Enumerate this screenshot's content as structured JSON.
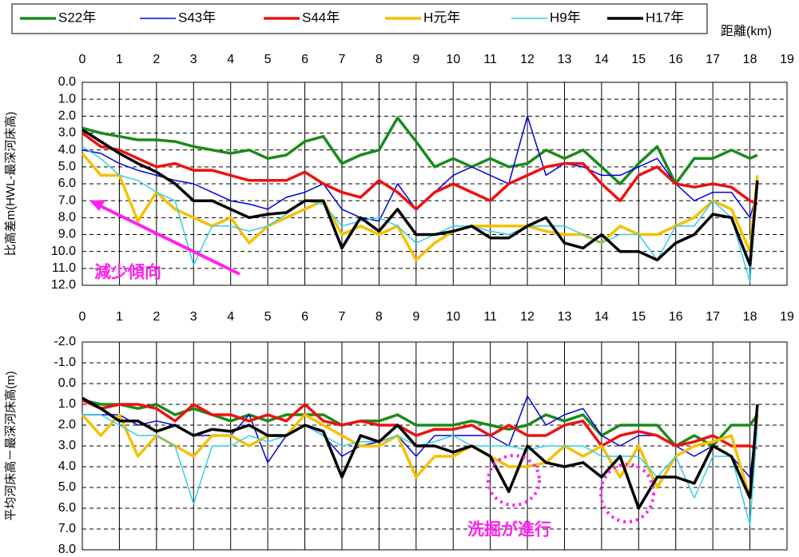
{
  "chart_data": [
    {
      "type": "line",
      "x_label": "距離(km)",
      "y_label": "比高差m(HWL-最深河床高)",
      "annotation": "減少傾向",
      "x": [
        0,
        0.5,
        1,
        1.5,
        2,
        2.5,
        3,
        3.5,
        4,
        4.5,
        5,
        5.5,
        6,
        6.5,
        7,
        7.5,
        8,
        8.5,
        9,
        9.5,
        10,
        10.5,
        11,
        11.5,
        12,
        12.5,
        13,
        13.5,
        14,
        14.5,
        15,
        15.5,
        16,
        16.5,
        17,
        17.5,
        18,
        18.2
      ],
      "xlim": [
        0,
        19
      ],
      "xticks": [
        0,
        1,
        2,
        3,
        4,
        5,
        6,
        7,
        8,
        9,
        10,
        11,
        12,
        13,
        14,
        15,
        16,
        17,
        18,
        19
      ],
      "ylim": [
        0,
        12
      ],
      "y_inverted": true,
      "grid": true,
      "yticks": [
        {
          "value": 0,
          "label": "0.0"
        },
        {
          "value": 1,
          "label": "1.0"
        },
        {
          "value": 2,
          "label": "2.0"
        },
        {
          "value": 3,
          "label": "3.0"
        },
        {
          "value": 4,
          "label": "4.0"
        },
        {
          "value": 5,
          "label": "5.0"
        },
        {
          "value": 6,
          "label": "6.0"
        },
        {
          "value": 7,
          "label": "7.0"
        },
        {
          "value": 8,
          "label": "8.0"
        },
        {
          "value": 9,
          "label": "9.0"
        },
        {
          "value": 10,
          "label": "10.0"
        },
        {
          "value": 11,
          "label": "11.0"
        },
        {
          "value": 12,
          "label": "12.0"
        }
      ],
      "series": [
        {
          "name": "S22年",
          "color": "#1a8a1a",
          "width": 3.5,
          "values": [
            2.7,
            3.0,
            3.2,
            3.4,
            3.4,
            3.5,
            3.8,
            4.0,
            4.2,
            4.0,
            4.5,
            4.3,
            3.5,
            3.2,
            4.8,
            4.3,
            4.0,
            2.1,
            3.5,
            5.0,
            4.5,
            5.0,
            4.5,
            5.0,
            4.8,
            4.0,
            4.5,
            4.0,
            5.0,
            6.0,
            4.8,
            3.8,
            6.0,
            4.5,
            4.5,
            4.0,
            4.5,
            4.3
          ]
        },
        {
          "name": "S43年",
          "color": "#0000dd",
          "width": 1.5,
          "values": [
            4.0,
            4.2,
            4.8,
            5.2,
            5.5,
            5.8,
            6.0,
            6.5,
            7.0,
            7.2,
            7.5,
            6.8,
            6.5,
            6.0,
            7.5,
            8.0,
            8.2,
            6.0,
            7.5,
            6.5,
            5.5,
            5.0,
            5.5,
            6.0,
            2.0,
            5.5,
            4.8,
            5.0,
            5.5,
            5.5,
            5.0,
            4.5,
            6.0,
            7.0,
            6.5,
            6.5,
            8.0,
            6.5
          ]
        },
        {
          "name": "S44年",
          "color": "#ee1111",
          "width": 3.5,
          "values": [
            3.0,
            3.8,
            4.0,
            4.5,
            5.0,
            4.8,
            5.2,
            5.2,
            5.5,
            5.8,
            5.8,
            5.8,
            5.3,
            6.0,
            6.5,
            6.8,
            5.8,
            6.5,
            7.5,
            6.5,
            6.0,
            6.5,
            7.0,
            6.0,
            5.5,
            5.0,
            4.8,
            4.8,
            6.0,
            7.0,
            5.5,
            5.0,
            6.0,
            6.2,
            6.0,
            6.2,
            7.0,
            7.2
          ]
        },
        {
          "name": "H元年",
          "color": "#f5c000",
          "width": 3.5,
          "values": [
            4.2,
            5.5,
            5.5,
            8.2,
            6.5,
            7.5,
            8.0,
            8.5,
            8.0,
            9.5,
            8.5,
            8.0,
            7.5,
            7.0,
            9.0,
            8.5,
            9.0,
            8.5,
            10.5,
            9.5,
            8.8,
            8.5,
            8.5,
            8.5,
            8.5,
            8.8,
            9.0,
            9.0,
            9.5,
            8.5,
            9.0,
            9.0,
            8.5,
            8.0,
            7.0,
            7.5,
            10.0,
            5.5
          ]
        },
        {
          "name": "H9年",
          "color": "#33ccee",
          "width": 1.5,
          "values": [
            3.8,
            4.5,
            5.5,
            5.8,
            6.5,
            7.0,
            10.8,
            8.5,
            8.5,
            8.8,
            8.5,
            7.8,
            7.0,
            7.2,
            8.5,
            8.2,
            8.0,
            8.5,
            9.5,
            9.0,
            8.5,
            8.5,
            8.8,
            9.0,
            8.5,
            8.5,
            8.5,
            9.0,
            9.5,
            9.0,
            9.0,
            10.5,
            8.5,
            8.5,
            7.0,
            8.0,
            11.8,
            6.0
          ]
        },
        {
          "name": "H17年",
          "color": "#000000",
          "width": 3.5,
          "values": [
            2.8,
            3.5,
            4.2,
            4.8,
            5.3,
            6.0,
            7.0,
            7.0,
            7.5,
            8.0,
            7.8,
            7.7,
            7.0,
            7.0,
            9.8,
            8.0,
            8.8,
            7.5,
            9.0,
            9.0,
            8.8,
            8.5,
            9.2,
            9.2,
            8.5,
            8.0,
            9.5,
            9.8,
            9.0,
            10.0,
            10.0,
            10.5,
            9.5,
            9.0,
            7.8,
            8.0,
            10.8,
            5.8
          ]
        }
      ]
    },
    {
      "type": "line",
      "y_label": "平均河床高－最深河床高(m)",
      "annotation": "洗掘が進行",
      "x": [
        0,
        0.5,
        1,
        1.5,
        2,
        2.5,
        3,
        3.5,
        4,
        4.5,
        5,
        5.5,
        6,
        6.5,
        7,
        7.5,
        8,
        8.5,
        9,
        9.5,
        10,
        10.5,
        11,
        11.5,
        12,
        12.5,
        13,
        13.5,
        14,
        14.5,
        15,
        15.5,
        16,
        16.5,
        17,
        17.5,
        18,
        18.2
      ],
      "xlim": [
        0,
        19
      ],
      "xticks": [
        0,
        1,
        2,
        3,
        4,
        5,
        6,
        7,
        8,
        9,
        10,
        11,
        12,
        13,
        14,
        15,
        16,
        17,
        18,
        19
      ],
      "ylim": [
        -2,
        8
      ],
      "y_inverted": true,
      "grid": true,
      "yticks": [
        {
          "value": -2,
          "label": "-2.0"
        },
        {
          "value": -1,
          "label": "-1.0"
        },
        {
          "value": 0,
          "label": "0.0"
        },
        {
          "value": 1,
          "label": "1.0"
        },
        {
          "value": 2,
          "label": "2.0"
        },
        {
          "value": 3,
          "label": "3.0"
        },
        {
          "value": 4,
          "label": "4.0"
        },
        {
          "value": 5,
          "label": "5.0"
        },
        {
          "value": 6,
          "label": "6.0"
        },
        {
          "value": 7,
          "label": "7.0"
        },
        {
          "value": 8,
          "label": "8.0"
        }
      ],
      "series": [
        {
          "color": "#1a8a1a",
          "width": 3.5,
          "values": [
            0.8,
            1.0,
            1.0,
            1.2,
            1.0,
            1.5,
            1.2,
            1.5,
            1.8,
            1.5,
            1.8,
            1.5,
            1.5,
            1.5,
            2.0,
            1.8,
            1.8,
            1.5,
            2.0,
            2.0,
            2.0,
            1.8,
            2.0,
            2.2,
            2.0,
            1.5,
            1.8,
            1.5,
            2.5,
            2.0,
            2.0,
            2.0,
            3.0,
            2.5,
            3.0,
            2.0,
            2.0,
            1.5
          ]
        },
        {
          "color": "#0000dd",
          "width": 1.5,
          "values": [
            1.5,
            1.5,
            1.5,
            2.0,
            1.8,
            2.0,
            2.5,
            2.5,
            2.5,
            1.5,
            3.8,
            2.5,
            2.0,
            2.5,
            3.5,
            3.0,
            2.8,
            2.5,
            3.5,
            2.5,
            2.5,
            2.5,
            2.5,
            3.0,
            0.6,
            2.0,
            1.5,
            1.2,
            2.5,
            3.0,
            2.5,
            2.5,
            3.0,
            3.5,
            3.0,
            3.5,
            4.5,
            1.5
          ]
        },
        {
          "color": "#ee1111",
          "width": 3.5,
          "values": [
            0.8,
            1.2,
            1.0,
            1.0,
            1.2,
            1.8,
            1.0,
            1.5,
            1.5,
            1.8,
            1.5,
            1.8,
            1.0,
            1.8,
            2.0,
            1.8,
            2.0,
            2.0,
            2.5,
            2.2,
            2.2,
            2.0,
            2.5,
            2.0,
            2.5,
            2.5,
            2.0,
            1.8,
            3.0,
            2.5,
            2.3,
            2.5,
            3.0,
            2.8,
            2.5,
            3.0,
            3.0,
            3.1
          ]
        },
        {
          "color": "#f5c000",
          "width": 3.5,
          "values": [
            1.5,
            2.5,
            1.5,
            3.5,
            2.5,
            3.0,
            3.5,
            2.5,
            2.5,
            3.0,
            2.5,
            2.5,
            1.5,
            2.0,
            2.5,
            3.0,
            3.0,
            2.5,
            4.5,
            3.5,
            3.5,
            3.0,
            3.5,
            4.0,
            4.0,
            3.8,
            3.0,
            3.5,
            3.0,
            4.5,
            3.0,
            5.0,
            3.5,
            3.0,
            2.8,
            2.5,
            5.5,
            1.5
          ]
        },
        {
          "color": "#33ccee",
          "width": 1.5,
          "values": [
            1.5,
            1.5,
            2.0,
            2.5,
            2.5,
            3.0,
            5.8,
            3.0,
            3.0,
            2.5,
            2.8,
            2.5,
            2.0,
            2.5,
            3.0,
            2.8,
            2.8,
            2.5,
            3.0,
            2.8,
            2.5,
            3.0,
            3.0,
            3.0,
            3.2,
            3.0,
            3.0,
            3.0,
            3.5,
            3.5,
            3.5,
            4.5,
            3.5,
            5.5,
            3.5,
            3.5,
            6.8,
            2.0
          ]
        },
        {
          "color": "#000000",
          "width": 3.5,
          "values": [
            0.7,
            1.2,
            1.8,
            1.8,
            2.3,
            2.0,
            2.5,
            2.2,
            2.3,
            2.0,
            2.5,
            2.5,
            2.0,
            2.3,
            4.5,
            2.5,
            2.8,
            2.0,
            3.0,
            3.0,
            3.3,
            3.0,
            3.5,
            5.2,
            3.0,
            3.8,
            4.0,
            3.8,
            4.5,
            3.5,
            6.0,
            4.5,
            4.5,
            4.8,
            3.0,
            3.5,
            5.5,
            1.0
          ]
        }
      ]
    }
  ]
}
